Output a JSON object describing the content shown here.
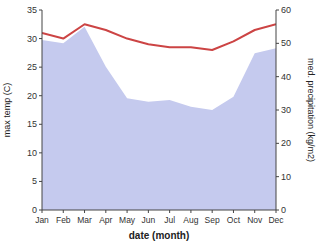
{
  "chart_data": {
    "type": "line",
    "xlabel": "date (month)",
    "ylabel": "max temp (C)",
    "y2label": "med. precipitation (kg/m2)",
    "categories": [
      "Jan",
      "Feb",
      "Mar",
      "Apr",
      "May",
      "Jun",
      "Jul",
      "Aug",
      "Sep",
      "Oct",
      "Nov",
      "Dec"
    ],
    "series": [
      {
        "type": "area",
        "axis": "y2",
        "color": "#c5caee",
        "values": [
          51.0,
          50.0,
          55.0,
          43.0,
          33.5,
          32.5,
          33.0,
          31.0,
          30.0,
          34.0,
          47.0,
          48.5
        ]
      },
      {
        "type": "line",
        "color": "#cc4444",
        "values": [
          31.0,
          30.0,
          32.5,
          31.5,
          30.0,
          29.0,
          28.5,
          28.5,
          28.0,
          29.5,
          31.5,
          32.5
        ]
      }
    ],
    "ylim": [
      0,
      35
    ],
    "yticks": [
      0,
      5,
      10,
      15,
      20,
      25,
      30,
      35
    ],
    "y2lim": [
      0,
      60
    ],
    "y2ticks": [
      0,
      10,
      20,
      30,
      40,
      50,
      60
    ]
  }
}
